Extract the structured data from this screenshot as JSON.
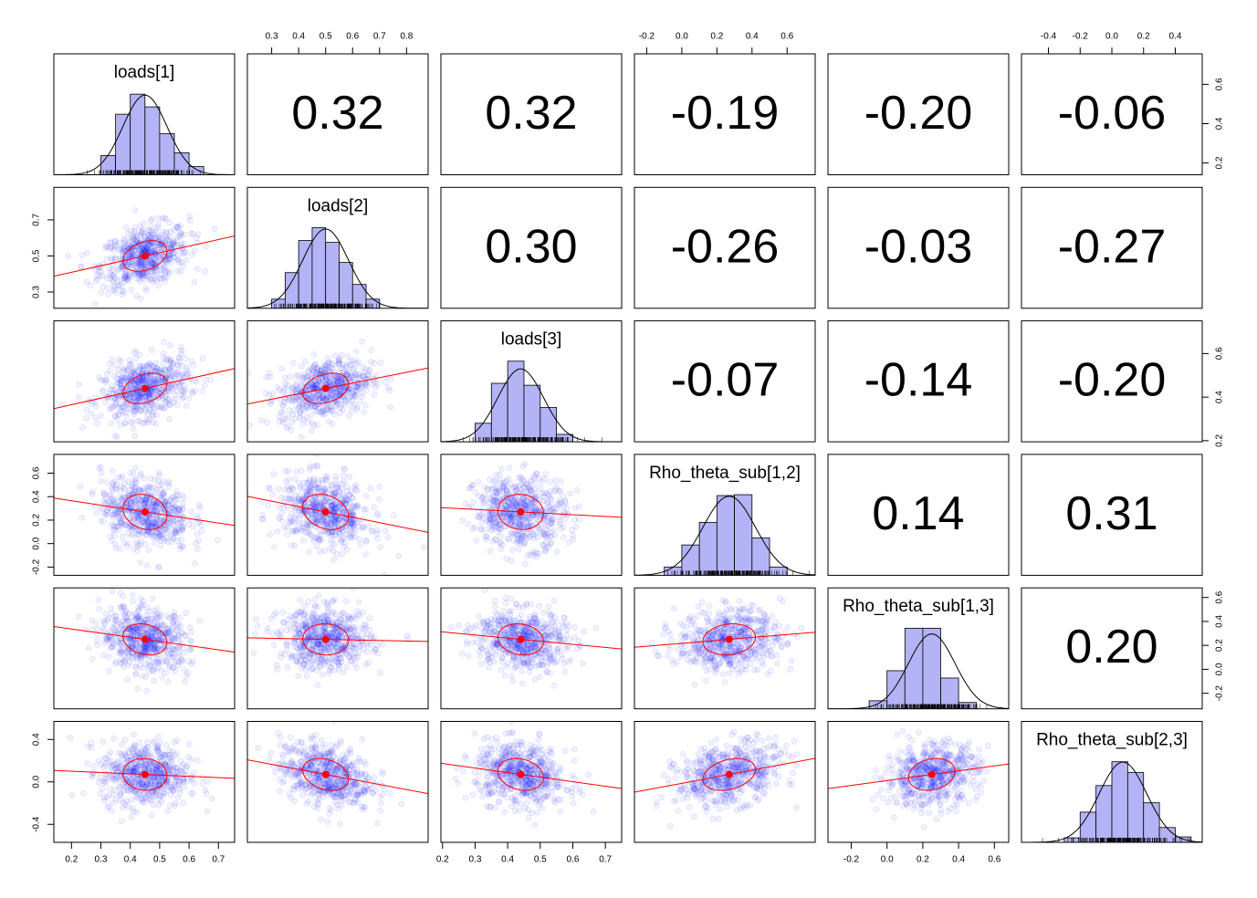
{
  "chart_data": {
    "type": "pairs",
    "hist_color": "#b3b3f5",
    "point_color": "#0000ff",
    "fit_color": "#ff0000",
    "variables": [
      {
        "name": "loads[1]",
        "lim": [
          0.14,
          0.755
        ],
        "xticks": [
          0.2,
          0.3,
          0.4,
          0.5,
          0.6,
          0.7
        ],
        "yticks": [
          0.2,
          0.4,
          0.6
        ],
        "mean": 0.45,
        "sd": 0.075,
        "bins": [
          0.3,
          0.35,
          0.4,
          0.45,
          0.5,
          0.55,
          0.6,
          0.65
        ],
        "densities": [
          1.28,
          4.04,
          5.38,
          4.53,
          2.75,
          1.47,
          0.55
        ]
      },
      {
        "name": "loads[2]",
        "lim": [
          0.21,
          0.88
        ],
        "xticks": [
          0.3,
          0.4,
          0.5,
          0.6,
          0.7,
          0.8
        ],
        "yticks": [
          0.3,
          0.5,
          0.7
        ],
        "mean": 0.5,
        "sd": 0.085,
        "bins": [
          0.3,
          0.35,
          0.4,
          0.45,
          0.5,
          0.55,
          0.6,
          0.65,
          0.7
        ],
        "densities": [
          0.54,
          2.11,
          4.01,
          4.77,
          3.9,
          2.71,
          1.41,
          0.54
        ]
      },
      {
        "name": "loads[3]",
        "lim": [
          0.195,
          0.75
        ],
        "xticks": [
          0.2,
          0.3,
          0.4,
          0.5,
          0.6,
          0.7
        ],
        "yticks": [
          0.2,
          0.4,
          0.6
        ],
        "mean": 0.44,
        "sd": 0.07,
        "bins": [
          0.3,
          0.35,
          0.4,
          0.45,
          0.5,
          0.55,
          0.6
        ],
        "densities": [
          1.45,
          4.57,
          6.3,
          4.42,
          2.68,
          0.58
        ]
      },
      {
        "name": "Rho_theta_sub[1,2]",
        "lim": [
          -0.27,
          0.76
        ],
        "xticks": [
          -0.2,
          {
            "value": 0,
            "label": "0.0"
          },
          0.2,
          0.4,
          0.6
        ],
        "yticks": [
          -0.2,
          {
            "value": 0,
            "label": "0.0"
          },
          0.2,
          0.4,
          0.6
        ],
        "mean": 0.27,
        "sd": 0.15,
        "bins": [
          -0.1,
          0,
          0.1,
          0.2,
          0.3,
          0.4,
          0.5,
          0.6
        ],
        "densities": [
          0.28,
          1.02,
          1.78,
          2.68,
          2.71,
          1.26,
          0.28
        ]
      },
      {
        "name": "Rho_theta_sub[1,3]",
        "lim": [
          -0.33,
          0.68
        ],
        "xticks": [
          -0.2,
          {
            "value": 0,
            "label": "0.0"
          },
          0.2,
          0.4,
          0.6
        ],
        "yticks": [
          -0.2,
          {
            "value": 0,
            "label": "0.0"
          },
          0.2,
          0.4,
          0.6
        ],
        "mean": 0.25,
        "sd": 0.13,
        "bins": [
          -0.1,
          0,
          0.1,
          0.2,
          0.3,
          0.4,
          0.5
        ],
        "densities": [
          0.33,
          1.56,
          3.3,
          3.3,
          1.26,
          0.26
        ]
      },
      {
        "name": "Rho_theta_sub[2,3]",
        "lim": [
          -0.57,
          0.57
        ],
        "xticks": [
          -0.4,
          -0.2,
          {
            "value": 0,
            "label": "0.0"
          },
          0.2,
          0.4
        ],
        "yticks": [
          -0.4,
          {
            "value": 0,
            "label": "0.0"
          },
          0.4
        ],
        "mean": 0.07,
        "sd": 0.15,
        "bins": [
          -0.3,
          -0.2,
          -0.1,
          0,
          0.1,
          0.2,
          0.3,
          0.4,
          0.5
        ],
        "densities": [
          0.15,
          1.0,
          1.88,
          2.67,
          2.31,
          1.31,
          0.49,
          0.18
        ]
      }
    ],
    "correlations": [
      [
        0.32,
        0.32,
        -0.19,
        -0.2,
        -0.06
      ],
      [
        0.3,
        -0.26,
        -0.03,
        -0.27
      ],
      [
        -0.07,
        -0.14,
        -0.2
      ],
      [
        0.14,
        0.31
      ],
      [
        0.2
      ]
    ],
    "correlation_labels": [
      [
        "0.32",
        "0.32",
        "-0.19",
        "-0.20",
        "-0.06"
      ],
      [
        "0.30",
        "-0.26",
        "-0.03",
        "-0.27"
      ],
      [
        "-0.07",
        "-0.14",
        "-0.20"
      ],
      [
        "0.14",
        "0.31"
      ],
      [
        "0.20"
      ]
    ]
  }
}
